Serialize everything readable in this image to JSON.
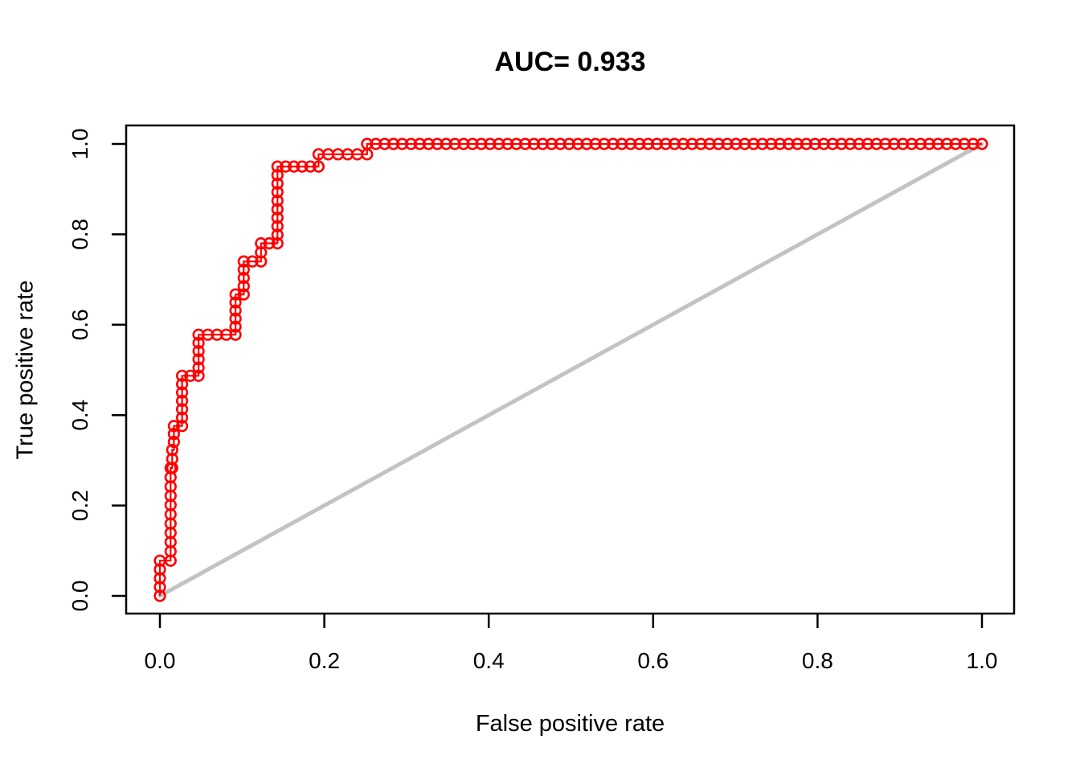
{
  "title": "AUC= 0.933",
  "chart_data": {
    "type": "line",
    "subtype": "roc-step-curve-with-markers",
    "title": "AUC= 0.933",
    "auc": 0.933,
    "xlabel": "False positive rate",
    "ylabel": "True positive rate",
    "xlim": [
      0.0,
      1.0
    ],
    "ylim": [
      0.0,
      1.0
    ],
    "grid": false,
    "legend": null,
    "x_ticks": {
      "values": [
        0.0,
        0.2,
        0.4,
        0.6,
        0.8,
        1.0
      ],
      "labels": [
        "0.0",
        "0.2",
        "0.4",
        "0.6",
        "0.8",
        "1.0"
      ]
    },
    "y_ticks": {
      "values": [
        0.0,
        0.2,
        0.4,
        0.6,
        0.8,
        1.0
      ],
      "labels": [
        "0.0",
        "0.2",
        "0.4",
        "0.6",
        "0.8",
        "1.0"
      ]
    },
    "colors": {
      "curve": "#FF0000",
      "diagonal": "#C3C3C3",
      "axis": "#000000",
      "background": "#FFFFFF"
    },
    "series": [
      {
        "name": "ROC curve",
        "color": "#FF0000",
        "marker": "open-circle",
        "line": true,
        "step_vertices": [
          [
            0.0,
            0.0
          ],
          [
            0.0,
            0.078
          ],
          [
            0.013,
            0.078
          ],
          [
            0.013,
            0.283
          ],
          [
            0.015,
            0.283
          ],
          [
            0.015,
            0.323
          ],
          [
            0.017,
            0.323
          ],
          [
            0.017,
            0.376
          ],
          [
            0.027,
            0.376
          ],
          [
            0.027,
            0.487
          ],
          [
            0.047,
            0.487
          ],
          [
            0.047,
            0.578
          ],
          [
            0.092,
            0.578
          ],
          [
            0.092,
            0.667
          ],
          [
            0.102,
            0.667
          ],
          [
            0.102,
            0.74
          ],
          [
            0.123,
            0.74
          ],
          [
            0.123,
            0.78
          ],
          [
            0.143,
            0.78
          ],
          [
            0.143,
            0.95
          ],
          [
            0.193,
            0.95
          ],
          [
            0.193,
            0.977
          ],
          [
            0.252,
            0.977
          ],
          [
            0.252,
            1.0
          ],
          [
            1.0,
            1.0
          ]
        ]
      },
      {
        "name": "chance diagonal",
        "color": "#C3C3C3",
        "marker": "none",
        "line": true,
        "points": [
          [
            0.0,
            0.0
          ],
          [
            1.0,
            1.0
          ]
        ]
      }
    ]
  }
}
